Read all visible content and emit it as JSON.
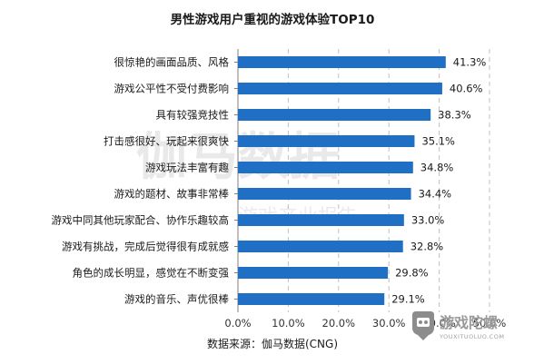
{
  "chart_data": {
    "type": "bar",
    "orientation": "horizontal",
    "title": "男性游戏用户重视的游戏体验TOP10",
    "categories": [
      "很惊艳的画面品质、风格",
      "游戏公平性不受付费影响",
      "具有较强竞技性",
      "打击感很好、玩起来很爽快",
      "游戏玩法丰富有趣",
      "游戏的题材、故事非常棒",
      "游戏中同其他玩家配合、协作乐趣较高",
      "游戏有挑战，完成后觉得很有成就感",
      "角色的成长明显，感觉在不断变强",
      "游戏的音乐、声优很棒"
    ],
    "values": [
      41.3,
      40.6,
      38.3,
      35.1,
      34.8,
      34.4,
      33.0,
      32.8,
      29.8,
      29.1
    ],
    "value_labels": [
      "41.3%",
      "40.6%",
      "38.3%",
      "35.1%",
      "34.8%",
      "34.4%",
      "33.0%",
      "32.8%",
      "29.8%",
      "29.1%"
    ],
    "xlim": [
      0,
      50
    ],
    "xticks": [
      "0.0%",
      "10.0%",
      "20.0%",
      "30.0%",
      "40.0%",
      "50.0%"
    ],
    "grid": true,
    "bar_color": "#1f6fc5",
    "grid_color": "#bfbfbf"
  },
  "source": "数据来源：伽马数据(CNG)",
  "watermark": {
    "main": "伽马数据",
    "sub": "游戏产业报告"
  },
  "logo": {
    "name": "游戏陀螺",
    "url_text": "YOUXITUOLUO.COM"
  }
}
